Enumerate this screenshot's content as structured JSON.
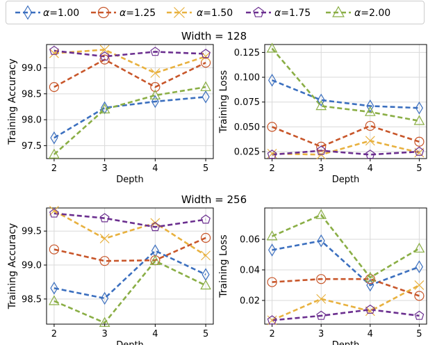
{
  "figure": {
    "legend": [
      {
        "label": "α=1.00",
        "color": "#3b6fbf",
        "marker": "diamond"
      },
      {
        "label": "α=1.25",
        "color": "#c8562a",
        "marker": "circle"
      },
      {
        "label": "α=1.50",
        "color": "#e8b13f",
        "marker": "x"
      },
      {
        "label": "α=1.75",
        "color": "#6b2f8f",
        "marker": "pentagon"
      },
      {
        "label": "α=2.00",
        "color": "#8aae45",
        "marker": "triangle"
      }
    ],
    "groups": [
      {
        "title": "Width = 128"
      },
      {
        "title": "Width = 256"
      }
    ]
  },
  "chart_data": [
    {
      "type": "line",
      "group_title": "Width = 128",
      "xlabel": "Depth",
      "ylabel": "Training Accuracy",
      "x": [
        2,
        3,
        4,
        5
      ],
      "xlim": [
        1.85,
        5.15
      ],
      "ylim": [
        97.25,
        99.45
      ],
      "yticks": [
        97.5,
        98.0,
        98.5,
        99.0
      ],
      "ytick_labels": [
        "97.5",
        "98.0",
        "98.5",
        "99.0"
      ],
      "grid": true,
      "series": [
        {
          "name": "α=1.00",
          "values": [
            97.65,
            98.23,
            98.35,
            98.44
          ]
        },
        {
          "name": "α=1.25",
          "values": [
            98.63,
            99.16,
            98.63,
            99.1
          ]
        },
        {
          "name": "α=1.50",
          "values": [
            99.28,
            99.35,
            98.9,
            99.22
          ]
        },
        {
          "name": "α=1.75",
          "values": [
            99.33,
            99.22,
            99.31,
            99.27
          ]
        },
        {
          "name": "α=2.00",
          "values": [
            97.33,
            98.2,
            98.47,
            98.63
          ]
        }
      ]
    },
    {
      "type": "line",
      "group_title": "Width = 128",
      "xlabel": "Depth",
      "ylabel": "Training Loss",
      "x": [
        2,
        3,
        4,
        5
      ],
      "xlim": [
        1.85,
        5.15
      ],
      "ylim": [
        0.018,
        0.133
      ],
      "yticks": [
        0.025,
        0.05,
        0.075,
        0.1,
        0.125
      ],
      "ytick_labels": [
        "0.025",
        "0.050",
        "0.075",
        "0.100",
        "0.125"
      ],
      "grid": true,
      "series": [
        {
          "name": "α=1.00",
          "values": [
            0.097,
            0.077,
            0.071,
            0.069
          ]
        },
        {
          "name": "α=1.25",
          "values": [
            0.05,
            0.03,
            0.051,
            0.035
          ]
        },
        {
          "name": "α=1.50",
          "values": [
            0.023,
            0.022,
            0.036,
            0.024
          ]
        },
        {
          "name": "α=1.75",
          "values": [
            0.022,
            0.026,
            0.022,
            0.025
          ]
        },
        {
          "name": "α=2.00",
          "values": [
            0.129,
            0.071,
            0.065,
            0.056
          ]
        }
      ]
    },
    {
      "type": "line",
      "group_title": "Width = 256",
      "xlabel": "Depth",
      "ylabel": "Training Accuracy",
      "x": [
        2,
        3,
        4,
        5
      ],
      "xlim": [
        1.85,
        5.15
      ],
      "ylim": [
        98.13,
        99.84
      ],
      "yticks": [
        98.5,
        99.0,
        99.5
      ],
      "ytick_labels": [
        "98.5",
        "99.0",
        "99.5"
      ],
      "grid": true,
      "series": [
        {
          "name": "α=1.00",
          "values": [
            98.66,
            98.51,
            99.21,
            98.86
          ]
        },
        {
          "name": "α=1.25",
          "values": [
            99.23,
            99.06,
            99.07,
            99.4
          ]
        },
        {
          "name": "α=1.50",
          "values": [
            99.8,
            99.39,
            99.62,
            99.14
          ]
        },
        {
          "name": "α=1.75",
          "values": [
            99.76,
            99.69,
            99.56,
            99.67
          ]
        },
        {
          "name": "α=2.00",
          "values": [
            98.47,
            98.15,
            99.06,
            98.7
          ]
        }
      ]
    },
    {
      "type": "line",
      "group_title": "Width = 256",
      "xlabel": "Depth",
      "ylabel": "Training Loss",
      "x": [
        2,
        3,
        4,
        5
      ],
      "xlim": [
        1.85,
        5.15
      ],
      "ylim": [
        0.0045,
        0.0805
      ],
      "yticks": [
        0.02,
        0.04,
        0.06
      ],
      "ytick_labels": [
        "0.02",
        "0.04",
        "0.06"
      ],
      "grid": true,
      "series": [
        {
          "name": "α=1.00",
          "values": [
            0.053,
            0.059,
            0.03,
            0.042
          ]
        },
        {
          "name": "α=1.25",
          "values": [
            0.032,
            0.034,
            0.034,
            0.023
          ]
        },
        {
          "name": "α=1.50",
          "values": [
            0.007,
            0.021,
            0.013,
            0.03
          ]
        },
        {
          "name": "α=1.75",
          "values": [
            0.007,
            0.01,
            0.014,
            0.01
          ]
        },
        {
          "name": "α=2.00",
          "values": [
            0.062,
            0.076,
            0.035,
            0.054
          ]
        }
      ]
    }
  ]
}
